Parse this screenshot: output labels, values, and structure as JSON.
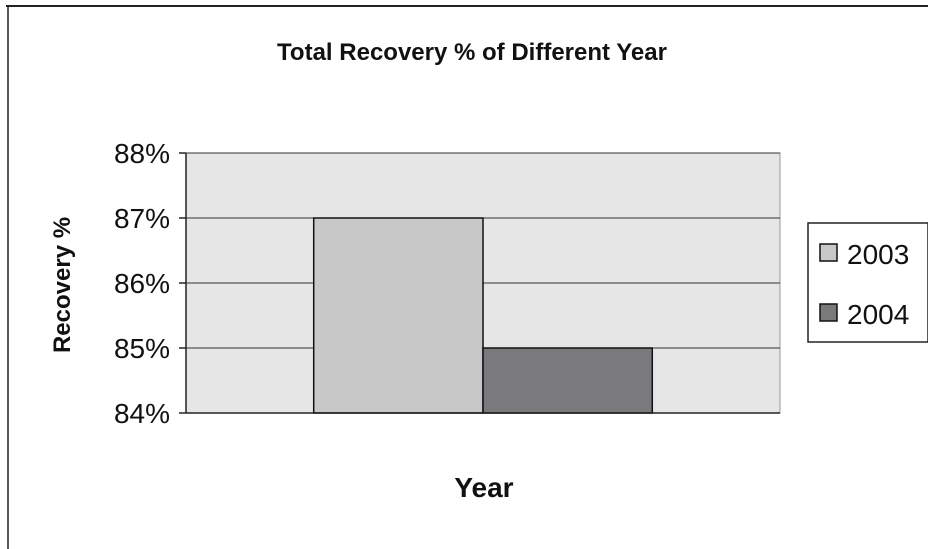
{
  "chart_data": {
    "type": "bar",
    "title": "Total Recovery % of Different Year",
    "xlabel": "Year",
    "ylabel": "Recovery %",
    "ylim": [
      84,
      88
    ],
    "yticks": [
      "84%",
      "85%",
      "86%",
      "87%",
      "88%"
    ],
    "ytick_values": [
      84,
      85,
      86,
      87,
      88
    ],
    "categories": [
      ""
    ],
    "series": [
      {
        "name": "2003",
        "values": [
          87
        ],
        "color": "#c8c8c8"
      },
      {
        "name": "2004",
        "values": [
          85
        ],
        "color": "#7a7a7c"
      }
    ],
    "grid": true,
    "legend": "right",
    "plot_background": "#e6e6e6"
  }
}
